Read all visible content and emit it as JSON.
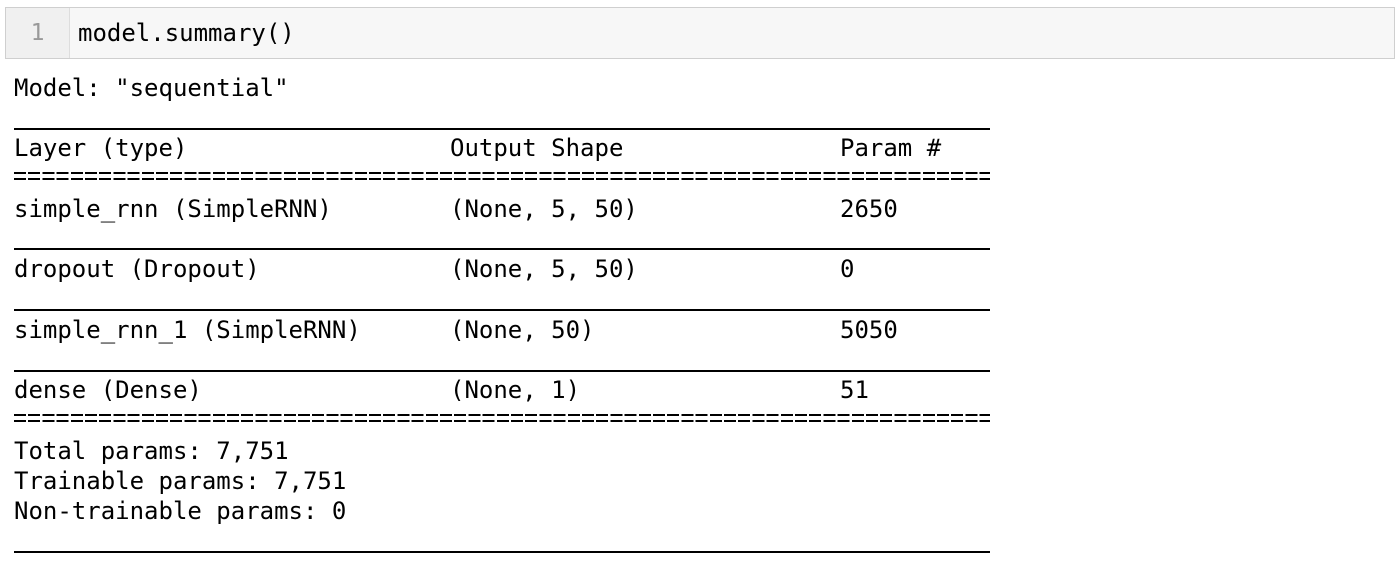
{
  "cell": {
    "line_number": "1",
    "code": "model.summary()"
  },
  "summary": {
    "model_line": "Model: \"sequential\"",
    "headers": {
      "layer": "Layer (type)",
      "output_shape": "Output Shape",
      "params": "Param #"
    },
    "rows": [
      {
        "layer": "simple_rnn (SimpleRNN)",
        "output_shape": "(None, 5, 50)",
        "params": "2650"
      },
      {
        "layer": "dropout (Dropout)",
        "output_shape": "(None, 5, 50)",
        "params": "0"
      },
      {
        "layer": "simple_rnn_1 (SimpleRNN)",
        "output_shape": "(None, 50)",
        "params": "5050"
      },
      {
        "layer": "dense (Dense)",
        "output_shape": "(None, 1)",
        "params": "51"
      }
    ],
    "total_params": "Total params: 7,751",
    "trainable_params": "Trainable params: 7,751",
    "non_trainable_params": "Non-trainable params: 0"
  }
}
